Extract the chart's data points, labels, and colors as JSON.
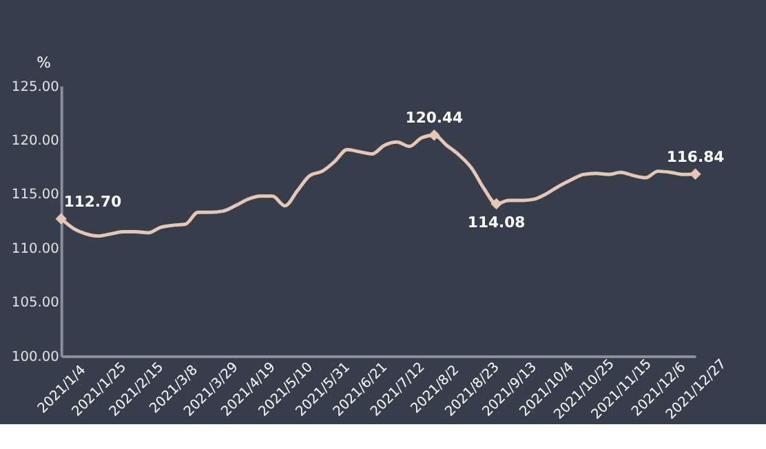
{
  "chart_data": {
    "type": "line",
    "ylabel": "%",
    "categories": [
      "2021/1/4",
      null,
      null,
      "2021/1/25",
      null,
      null,
      "2021/2/15",
      null,
      null,
      "2021/3/8",
      null,
      null,
      "2021/3/29",
      null,
      null,
      "2021/4/19",
      null,
      null,
      "2021/5/10",
      null,
      null,
      "2021/5/31",
      null,
      null,
      "2021/6/21",
      null,
      null,
      "2021/7/12",
      null,
      null,
      "2021/8/2",
      null,
      null,
      "2021/8/23",
      null,
      null,
      "2021/9/13",
      null,
      null,
      "2021/10/4",
      null,
      null,
      "2021/10/25",
      null,
      null,
      "2021/11/15",
      null,
      null,
      "2021/12/6",
      null,
      null,
      "2021/12/27"
    ],
    "series": [
      {
        "color": "#e8c6b4",
        "line_style": "solid",
        "values": [
          112.7,
          111.8,
          111.3,
          111.1,
          111.3,
          111.5,
          111.5,
          111.4,
          111.9,
          112.1,
          112.2,
          113.3,
          113.3,
          113.4,
          113.9,
          114.5,
          114.8,
          114.8,
          113.9,
          115.3,
          116.7,
          117.1,
          118.0,
          119.1,
          118.9,
          118.7,
          119.5,
          119.8,
          119.4,
          120.2,
          120.44,
          119.5,
          118.6,
          117.4,
          115.5,
          114.08,
          114.4,
          114.4,
          114.5,
          115.0,
          115.7,
          116.3,
          116.8,
          116.9,
          116.8,
          117.0,
          116.7,
          116.5,
          117.1,
          117.0,
          116.8,
          116.84
        ]
      },
      {
        "type": "scatter",
        "color": "#e8c6b4",
        "marker": "diamond",
        "values": [
          112.7,
          null,
          null,
          null,
          null,
          null,
          null,
          null,
          null,
          null,
          null,
          null,
          null,
          null,
          null,
          null,
          null,
          null,
          null,
          null,
          null,
          null,
          null,
          null,
          null,
          null,
          null,
          null,
          null,
          null,
          120.44,
          null,
          null,
          null,
          null,
          114.08,
          null,
          null,
          null,
          null,
          null,
          null,
          null,
          null,
          null,
          null,
          null,
          null,
          null,
          null,
          null,
          116.84
        ],
        "value_labels": [
          "112.70",
          null,
          null,
          null,
          null,
          null,
          null,
          null,
          null,
          null,
          null,
          null,
          null,
          null,
          null,
          null,
          null,
          null,
          null,
          null,
          null,
          null,
          null,
          null,
          null,
          null,
          null,
          null,
          null,
          null,
          "120.44",
          null,
          null,
          null,
          null,
          "114.08",
          null,
          null,
          null,
          null,
          null,
          null,
          null,
          null,
          null,
          null,
          null,
          null,
          null,
          null,
          null,
          "116.84"
        ]
      }
    ],
    "ylim": [
      100,
      125
    ],
    "yticks": [
      {
        "value": 100,
        "label": "100.00"
      },
      {
        "value": 105,
        "label": "105.00"
      },
      {
        "value": 110,
        "label": "110.00"
      },
      {
        "value": 115,
        "label": "115.00"
      },
      {
        "value": 120,
        "label": "120.00"
      },
      {
        "value": 125,
        "label": "125.00"
      }
    ],
    "grid": false
  }
}
